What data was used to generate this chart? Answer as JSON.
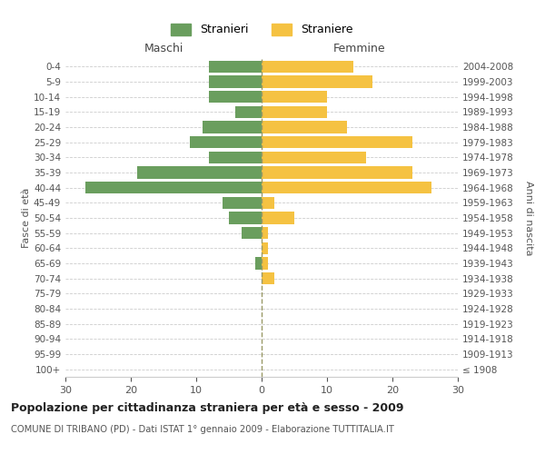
{
  "age_groups": [
    "100+",
    "95-99",
    "90-94",
    "85-89",
    "80-84",
    "75-79",
    "70-74",
    "65-69",
    "60-64",
    "55-59",
    "50-54",
    "45-49",
    "40-44",
    "35-39",
    "30-34",
    "25-29",
    "20-24",
    "15-19",
    "10-14",
    "5-9",
    "0-4"
  ],
  "birth_years": [
    "≤ 1908",
    "1909-1913",
    "1914-1918",
    "1919-1923",
    "1924-1928",
    "1929-1933",
    "1934-1938",
    "1939-1943",
    "1944-1948",
    "1949-1953",
    "1954-1958",
    "1959-1963",
    "1964-1968",
    "1969-1973",
    "1974-1978",
    "1979-1983",
    "1984-1988",
    "1989-1993",
    "1994-1998",
    "1999-2003",
    "2004-2008"
  ],
  "males": [
    0,
    0,
    0,
    0,
    0,
    0,
    0,
    1,
    0,
    3,
    5,
    6,
    27,
    19,
    8,
    11,
    9,
    4,
    8,
    8,
    8
  ],
  "females": [
    0,
    0,
    0,
    0,
    0,
    0,
    2,
    1,
    1,
    1,
    5,
    2,
    26,
    23,
    16,
    23,
    13,
    10,
    10,
    17,
    14
  ],
  "male_color": "#6a9e5e",
  "female_color": "#f5c242",
  "background_color": "#ffffff",
  "grid_color": "#cccccc",
  "title": "Popolazione per cittadinanza straniera per età e sesso - 2009",
  "subtitle": "COMUNE DI TRIBANO (PD) - Dati ISTAT 1° gennaio 2009 - Elaborazione TUTTITALIA.IT",
  "xlabel_left": "Maschi",
  "xlabel_right": "Femmine",
  "ylabel_left": "Fasce di età",
  "ylabel_right": "Anni di nascita",
  "legend_male": "Stranieri",
  "legend_female": "Straniere",
  "xlim": 30,
  "bar_height": 0.8
}
